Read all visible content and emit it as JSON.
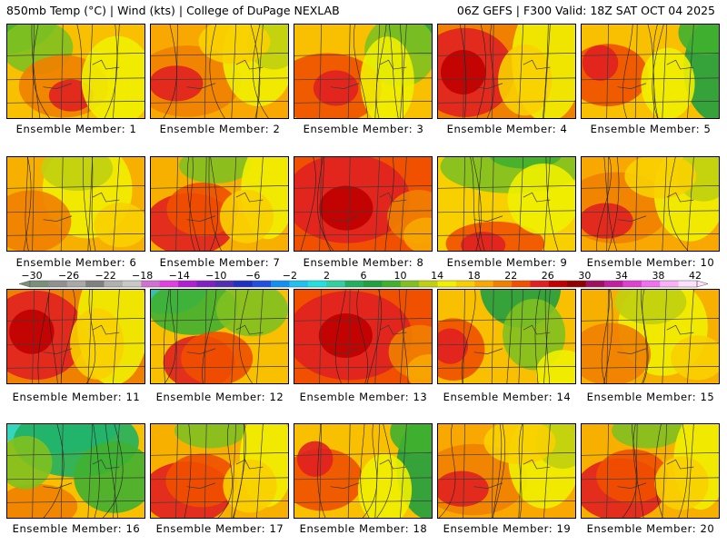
{
  "header": {
    "left": "850mb Temp (°C) | Wind (kts) | College of DuPage NEXLAB",
    "right": "06Z GEFS | F300 Valid: 18Z SAT OCT 04 2025"
  },
  "colorbar": {
    "labels": [
      "−30",
      "−26",
      "−22",
      "−18",
      "−14",
      "−10",
      "−6",
      "−2",
      "2",
      "6",
      "10",
      "14",
      "18",
      "22",
      "26",
      "30",
      "34",
      "38",
      "42"
    ],
    "colors": [
      "#7a8f7a",
      "#909090",
      "#a8a8a8",
      "#808080",
      "#b0b0b0",
      "#c8c8c8",
      "#d070d0",
      "#e040e0",
      "#b020d0",
      "#8020c0",
      "#5030b0",
      "#2030c0",
      "#2050e0",
      "#1090f0",
      "#20c0f0",
      "#20e0e0",
      "#30d0a0",
      "#20b060",
      "#20a040",
      "#40b030",
      "#80c020",
      "#c0d010",
      "#f0f000",
      "#f8d000",
      "#f8a800",
      "#f08000",
      "#f05000",
      "#e02020",
      "#c00000",
      "#900000",
      "#a01060",
      "#c020a0",
      "#e040d0",
      "#f070f0",
      "#f8b0f8",
      "#ffe0ff"
    ]
  },
  "members": [
    {
      "label": "Ensemble Member: 1",
      "scheme": "green-nw"
    },
    {
      "label": "Ensemble Member: 2",
      "scheme": "warm"
    },
    {
      "label": "Ensemble Member: 3",
      "scheme": "warm-ne-green"
    },
    {
      "label": "Ensemble Member: 4",
      "scheme": "hot-west"
    },
    {
      "label": "Ensemble Member: 5",
      "scheme": "green-east"
    },
    {
      "label": "Ensemble Member: 6",
      "scheme": "mild"
    },
    {
      "label": "Ensemble Member: 7",
      "scheme": "warm-sw"
    },
    {
      "label": "Ensemble Member: 8",
      "scheme": "hot"
    },
    {
      "label": "Ensemble Member: 9",
      "scheme": "green-north"
    },
    {
      "label": "Ensemble Member: 10",
      "scheme": "warm"
    },
    {
      "label": "Ensemble Member: 11",
      "scheme": "hot-west"
    },
    {
      "label": "Ensemble Member: 12",
      "scheme": "cool-nw"
    },
    {
      "label": "Ensemble Member: 13",
      "scheme": "hot"
    },
    {
      "label": "Ensemble Member: 14",
      "scheme": "green-ne"
    },
    {
      "label": "Ensemble Member: 15",
      "scheme": "mild"
    },
    {
      "label": "Ensemble Member: 16",
      "scheme": "cold-north"
    },
    {
      "label": "Ensemble Member: 17",
      "scheme": "warm-sw"
    },
    {
      "label": "Ensemble Member: 18",
      "scheme": "green-east"
    },
    {
      "label": "Ensemble Member: 19",
      "scheme": "warm"
    },
    {
      "label": "Ensemble Member: 20",
      "scheme": "warm-sw"
    }
  ]
}
